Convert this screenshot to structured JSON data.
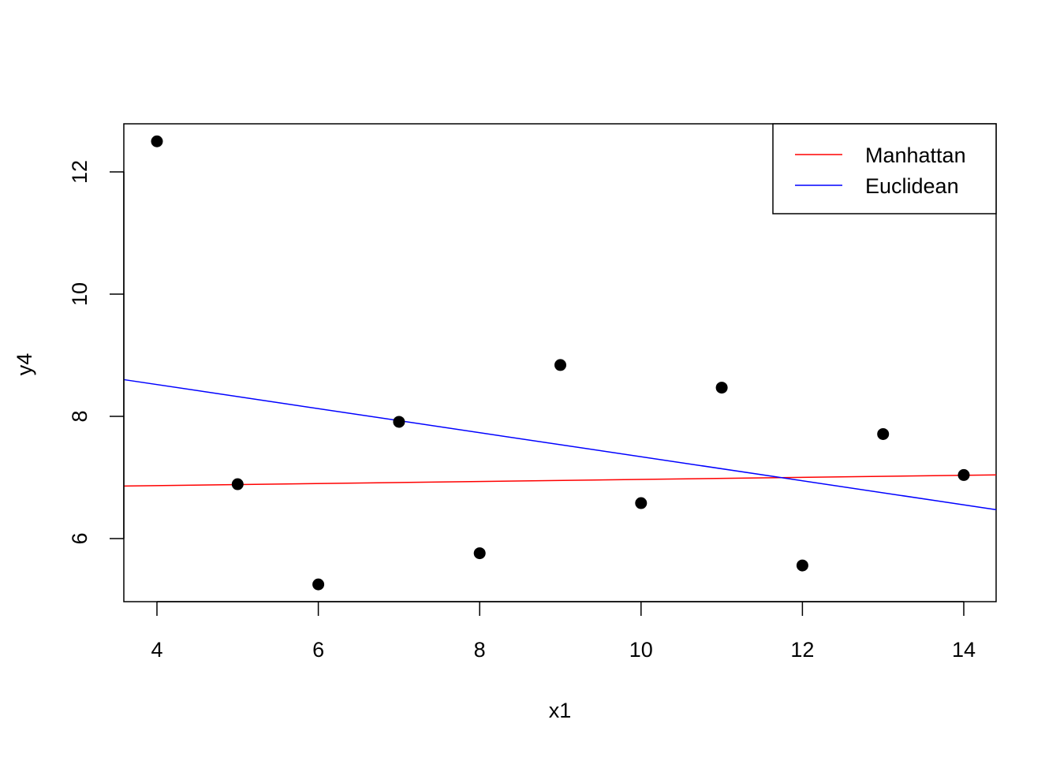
{
  "chart_data": {
    "type": "scatter",
    "title": "",
    "xlabel": "x1",
    "ylabel": "y4",
    "xlim": [
      3.6,
      14.4
    ],
    "ylim": [
      4.98,
      12.8
    ],
    "x_ticks": [
      4,
      6,
      8,
      10,
      12,
      14
    ],
    "y_ticks": [
      6,
      8,
      10,
      12
    ],
    "grid": false,
    "legend_position": "topright",
    "points": {
      "x": [
        4,
        5,
        6,
        7,
        8,
        9,
        10,
        11,
        12,
        13,
        14
      ],
      "y": [
        12.5,
        6.89,
        5.25,
        7.91,
        5.76,
        8.84,
        6.58,
        8.47,
        5.56,
        7.71,
        7.04
      ]
    },
    "series": [
      {
        "name": "Manhattan",
        "color": "#ff0000",
        "intercept": 6.8,
        "slope": 0.0168
      },
      {
        "name": "Euclidean",
        "color": "#0000ff",
        "intercept": 9.31,
        "slope": -0.197
      }
    ]
  },
  "legend": {
    "items": [
      {
        "label": "Manhattan",
        "color": "#ff0000"
      },
      {
        "label": "Euclidean",
        "color": "#0000ff"
      }
    ]
  },
  "axes": {
    "x_tick_labels": [
      "4",
      "6",
      "8",
      "10",
      "12",
      "14"
    ],
    "y_tick_labels": [
      "6",
      "8",
      "10",
      "12"
    ],
    "xlabel": "x1",
    "ylabel": "y4"
  }
}
